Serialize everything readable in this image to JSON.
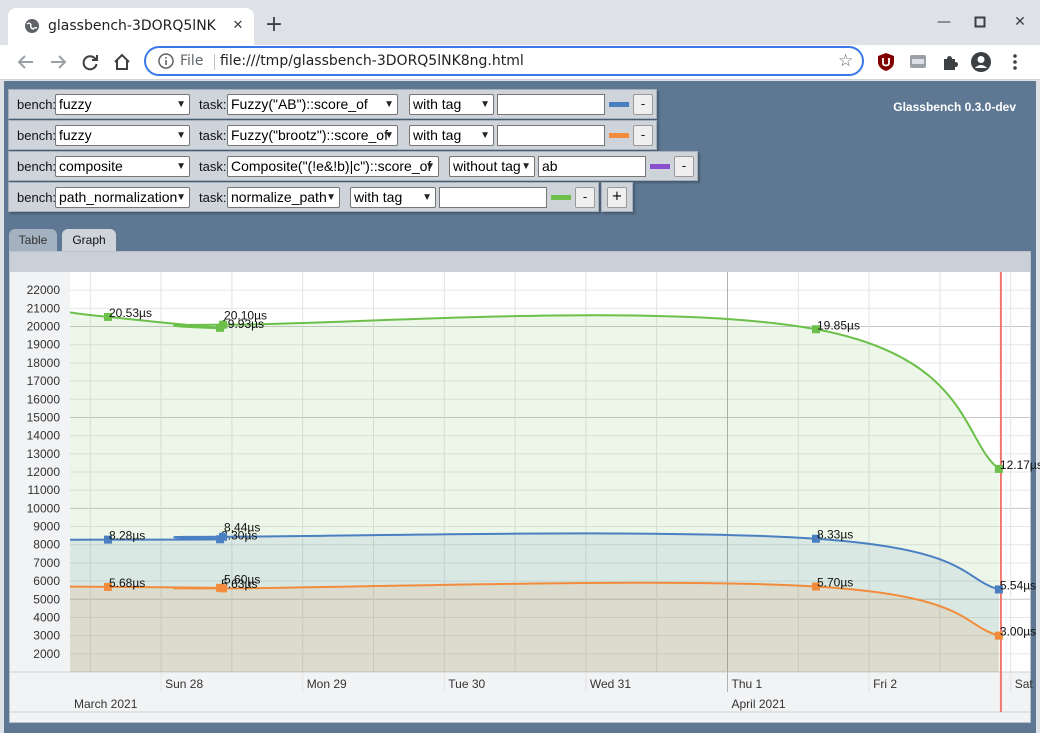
{
  "browser": {
    "tab_title": "glassbench-3DORQ5lNK8ng.html",
    "tab_visible_title": "glassbench-3DORQ5lNK",
    "address_scheme": "File",
    "address_url": "file:///tmp/glassbench-3DORQ5lNK8ng.html"
  },
  "app": {
    "title": "Glassbench 0.3.0-dev"
  },
  "rows": [
    {
      "bench_label": "bench:",
      "bench": "fuzzy",
      "task_label": "task:",
      "task": "Fuzzy(\"AB\")::score_of",
      "tag_mode": "with tag",
      "tag_value": "",
      "color": "#4a7fc1",
      "remove": "-"
    },
    {
      "bench_label": "bench:",
      "bench": "fuzzy",
      "task_label": "task:",
      "task": "Fuzzy(\"brootz\")::score_of",
      "tag_mode": "with tag",
      "tag_value": "",
      "color": "#f28c3c",
      "remove": "-"
    },
    {
      "bench_label": "bench:",
      "bench": "composite",
      "task_label": "task:",
      "task": "Composite(\"(!e&!b)|c\")::score_of",
      "tag_mode": "without tag",
      "tag_value": "ab",
      "color": "#8a4fd0",
      "remove": "-"
    },
    {
      "bench_label": "bench:",
      "bench": "path_normalization",
      "task_label": "task:",
      "task": "normalize_path",
      "tag_mode": "with tag",
      "tag_value": "",
      "color": "#6cc04a",
      "remove": "-"
    }
  ],
  "add_button": "+",
  "tabs": [
    {
      "label": "Table",
      "active": false
    },
    {
      "label": "Graph",
      "active": true
    }
  ],
  "chart_data": {
    "type": "line",
    "y_ticks": [
      2000,
      3000,
      4000,
      5000,
      6000,
      7000,
      8000,
      9000,
      10000,
      11000,
      12000,
      13000,
      14000,
      15000,
      16000,
      17000,
      18000,
      19000,
      20000,
      21000,
      22000
    ],
    "ylim": [
      1000,
      23000
    ],
    "x_ticks": [
      "Sun 28",
      "Mon 29",
      "Tue 30",
      "Wed 31",
      "Thu 1",
      "Fri 2",
      "Sat"
    ],
    "month_labels": [
      "March 2021",
      "April 2021"
    ],
    "series": [
      {
        "color": "#6cc04a",
        "points": [
          {
            "x": "Sat 27 15:00",
            "y": 20530,
            "label": "20.53µs"
          },
          {
            "x": "Sun 28 10:00",
            "y": 19930,
            "label": "19.93µs"
          },
          {
            "x": "Sun 28 10:30",
            "y": 20100,
            "label": "20.10µs"
          },
          {
            "x": "Thu 1 15:00",
            "y": 19850,
            "label": "19.85µs"
          },
          {
            "x": "Fri 2 22:00",
            "y": 12170,
            "label": "12.17µs"
          }
        ]
      },
      {
        "color": "#4a7fc1",
        "points": [
          {
            "x": "Sat 27 15:00",
            "y": 8280,
            "label": "8.28µs"
          },
          {
            "x": "Sun 28 10:00",
            "y": 8300,
            "label": "8.30µs"
          },
          {
            "x": "Sun 28 10:30",
            "y": 8440,
            "label": "8.44µs"
          },
          {
            "x": "Thu 1 15:00",
            "y": 8330,
            "label": "8.33µs"
          },
          {
            "x": "Fri 2 22:00",
            "y": 5540,
            "label": "5.54µs"
          }
        ]
      },
      {
        "color": "#f28c3c",
        "points": [
          {
            "x": "Sat 27 15:00",
            "y": 5680,
            "label": "5.68µs"
          },
          {
            "x": "Sun 28 10:00",
            "y": 5630,
            "label": "5.63µs"
          },
          {
            "x": "Sun 28 10:30",
            "y": 5600,
            "label": "5.60µs"
          },
          {
            "x": "Thu 1 15:00",
            "y": 5700,
            "label": "5.70µs"
          },
          {
            "x": "Fri 2 22:00",
            "y": 3000,
            "label": "3.00µs"
          }
        ]
      }
    ]
  }
}
